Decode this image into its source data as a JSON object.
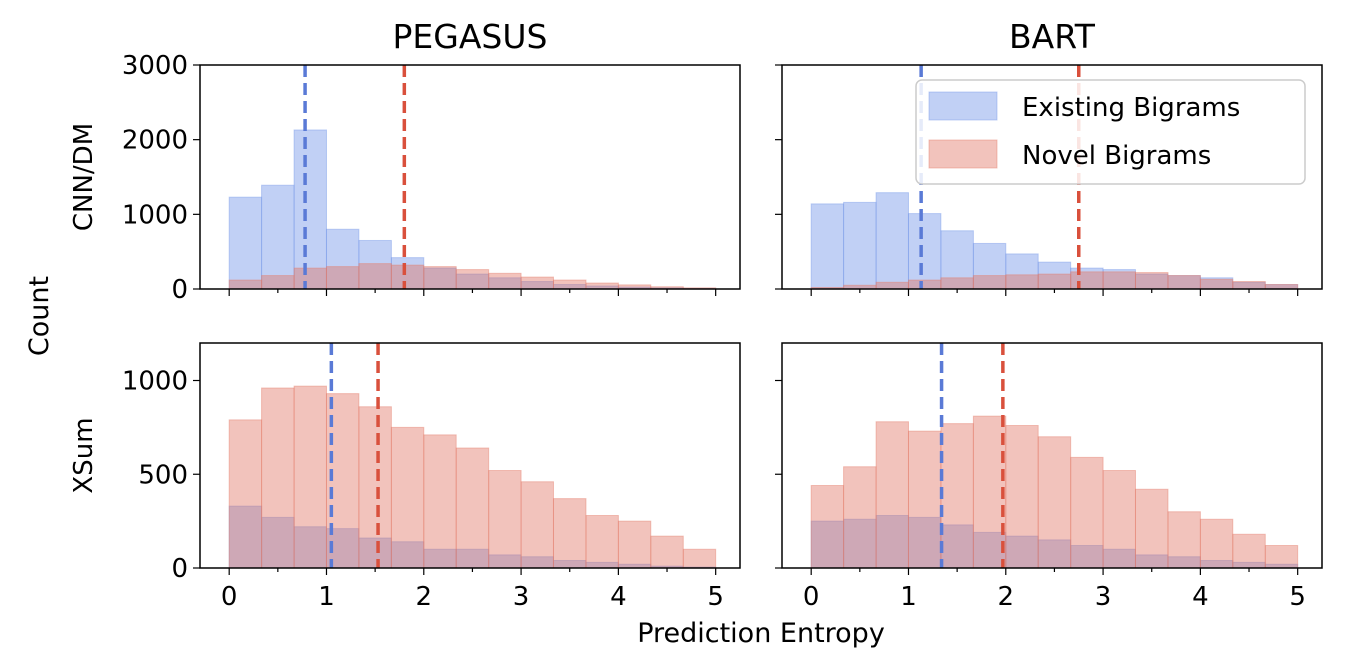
{
  "chart_data": {
    "type": "histogram",
    "grid": false,
    "legend_position": "top-right of upper-right panel",
    "xlabel": "Prediction Entropy",
    "ylabel": "Count",
    "column_titles": [
      "PEGASUS",
      "BART"
    ],
    "row_labels": [
      "CNN/DM",
      "XSum"
    ],
    "x_ticks": [
      0,
      1,
      2,
      3,
      4,
      5
    ],
    "xlim": [
      -0.3,
      5.25
    ],
    "rows": [
      {
        "ylim": [
          0,
          3000
        ],
        "y_ticks": [
          0,
          1000,
          2000,
          3000
        ]
      },
      {
        "ylim": [
          0,
          1200
        ],
        "y_ticks": [
          0,
          500,
          1000
        ]
      }
    ],
    "colors": {
      "Existing Bigrams": "#6b8fe8",
      "Novel Bigrams": "#e07060",
      "existing_line": "#5a7ad6",
      "novel_line": "#d9503c"
    },
    "series_names": [
      "Existing Bigrams",
      "Novel Bigrams"
    ],
    "panels": [
      {
        "model": "PEGASUS",
        "dataset": "CNN/DM",
        "bin_edges": [
          0,
          0.333,
          0.667,
          1.0,
          1.333,
          1.667,
          2.0,
          2.333,
          2.667,
          3.0,
          3.333,
          3.667,
          4.0,
          4.333,
          4.667,
          5.0
        ],
        "existing": [
          1230,
          1390,
          2130,
          800,
          650,
          420,
          280,
          200,
          150,
          100,
          60,
          40,
          25,
          15,
          8
        ],
        "novel": [
          120,
          180,
          280,
          300,
          340,
          320,
          300,
          260,
          210,
          160,
          120,
          80,
          55,
          30,
          15
        ],
        "existing_mean": 0.78,
        "novel_mean": 1.8
      },
      {
        "model": "BART",
        "dataset": "CNN/DM",
        "bin_edges": [
          0,
          0.333,
          0.667,
          1.0,
          1.333,
          1.667,
          2.0,
          2.333,
          2.667,
          3.0,
          3.333,
          3.667,
          4.0,
          4.333,
          4.667,
          5.0
        ],
        "existing": [
          1140,
          1160,
          1290,
          1010,
          780,
          610,
          470,
          360,
          280,
          260,
          200,
          180,
          150,
          90,
          60
        ],
        "novel": [
          20,
          50,
          90,
          120,
          150,
          180,
          190,
          200,
          230,
          230,
          220,
          180,
          130,
          100,
          60
        ],
        "existing_mean": 1.13,
        "novel_mean": 2.75
      },
      {
        "model": "PEGASUS",
        "dataset": "XSum",
        "bin_edges": [
          0,
          0.333,
          0.667,
          1.0,
          1.333,
          1.667,
          2.0,
          2.333,
          2.667,
          3.0,
          3.333,
          3.667,
          4.0,
          4.333,
          4.667,
          5.0
        ],
        "existing": [
          330,
          270,
          220,
          210,
          160,
          140,
          100,
          100,
          70,
          60,
          40,
          30,
          20,
          10,
          5
        ],
        "novel": [
          790,
          960,
          970,
          930,
          860,
          750,
          710,
          640,
          520,
          460,
          370,
          280,
          250,
          170,
          100
        ],
        "existing_mean": 1.05,
        "novel_mean": 1.53
      },
      {
        "model": "BART",
        "dataset": "XSum",
        "bin_edges": [
          0,
          0.333,
          0.667,
          1.0,
          1.333,
          1.667,
          2.0,
          2.333,
          2.667,
          3.0,
          3.333,
          3.667,
          4.0,
          4.333,
          4.667,
          5.0
        ],
        "existing": [
          250,
          260,
          280,
          270,
          230,
          190,
          170,
          150,
          120,
          100,
          70,
          60,
          40,
          30,
          20
        ],
        "novel": [
          440,
          540,
          780,
          730,
          770,
          810,
          760,
          700,
          590,
          520,
          420,
          300,
          260,
          180,
          120
        ],
        "existing_mean": 1.34,
        "novel_mean": 1.97
      }
    ]
  }
}
